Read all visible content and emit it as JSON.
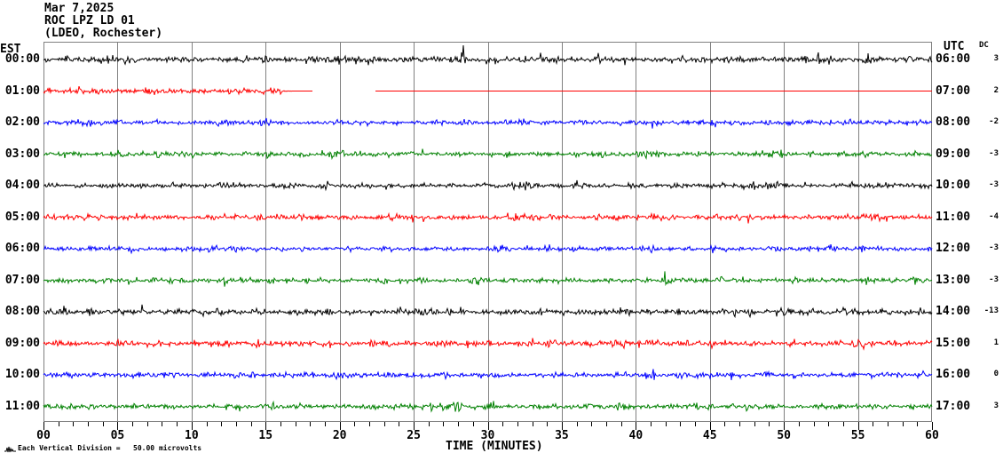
{
  "title": {
    "date": "Mar 7,2025",
    "station": "ROC LPZ LD 01",
    "location": "(LDEO, Rochester)"
  },
  "left_axis": {
    "header": "EST"
  },
  "right_axis": {
    "header": "UTC",
    "dc_header": "DC"
  },
  "x_axis": {
    "label": "TIME (MINUTES)",
    "range": [
      0,
      60
    ],
    "major_tick_interval": 5,
    "minor_tick_interval": 1,
    "tick_labels": [
      "00",
      "05",
      "10",
      "15",
      "20",
      "25",
      "30",
      "35",
      "40",
      "45",
      "50",
      "55",
      "60"
    ]
  },
  "footer": {
    "scale_note": "Each Vertical Division =   50.00 microvolts",
    "icon": "mini-waveform-icon"
  },
  "colors": {
    "background": "#ffffff",
    "grid": "#808080",
    "border": "#808080",
    "axis": "#000000",
    "text": "#000000",
    "trace_cycle": [
      "#000000",
      "#ff0000",
      "#0000ff",
      "#008000"
    ]
  },
  "chart_data": {
    "type": "line",
    "subtype": "helicorder-seismogram",
    "title": "ROC LPZ LD 01 — Mar 7,2025 (LDEO, Rochester)",
    "xlabel": "TIME (MINUTES)",
    "x_range": [
      0,
      60
    ],
    "minutes_per_row": 60,
    "grid": "vertical lines every 5 minutes",
    "vertical_division_microvolts": 50.0,
    "description": "12 one-hour seismic trace rows of continuous background noise, colors cycling black/red/blue/green; amplitudes are random microseismic noise of roughly ±0.1-0.3 vertical divisions with intermittent bursts. Row 01:00 EST (red) flatlines near minute 17-18 and has a data gap from ~minute 18.2 to ~22.4.",
    "rows": [
      {
        "est": "00:00",
        "utc": "06:00",
        "dc": "3",
        "color": "#000000",
        "seed": 101,
        "amp": 5.4
      },
      {
        "est": "01:00",
        "utc": "07:00",
        "dc": "2",
        "color": "#ff0000",
        "seed": 202,
        "amp": 5.0,
        "flat_from_min": 16.8,
        "gap_min": [
          18.2,
          22.4
        ]
      },
      {
        "est": "02:00",
        "utc": "08:00",
        "dc": "-2",
        "color": "#0000ff",
        "seed": 303,
        "amp": 4.2
      },
      {
        "est": "03:00",
        "utc": "09:00",
        "dc": "-3",
        "color": "#008000",
        "seed": 404,
        "amp": 4.5
      },
      {
        "est": "04:00",
        "utc": "10:00",
        "dc": "-3",
        "color": "#000000",
        "seed": 505,
        "amp": 4.2
      },
      {
        "est": "05:00",
        "utc": "11:00",
        "dc": "-4",
        "color": "#ff0000",
        "seed": 606,
        "amp": 5.0
      },
      {
        "est": "06:00",
        "utc": "12:00",
        "dc": "-3",
        "color": "#0000ff",
        "seed": 707,
        "amp": 4.2
      },
      {
        "est": "07:00",
        "utc": "13:00",
        "dc": "-3",
        "color": "#008000",
        "seed": 808,
        "amp": 4.5
      },
      {
        "est": "08:00",
        "utc": "14:00",
        "dc": "-13",
        "color": "#000000",
        "seed": 909,
        "amp": 5.4
      },
      {
        "est": "09:00",
        "utc": "15:00",
        "dc": "1",
        "color": "#ff0000",
        "seed": 1010,
        "amp": 5.0
      },
      {
        "est": "10:00",
        "utc": "16:00",
        "dc": "0",
        "color": "#0000ff",
        "seed": 1111,
        "amp": 4.6
      },
      {
        "est": "11:00",
        "utc": "17:00",
        "dc": "3",
        "color": "#008000",
        "seed": 1212,
        "amp": 4.5
      }
    ]
  }
}
